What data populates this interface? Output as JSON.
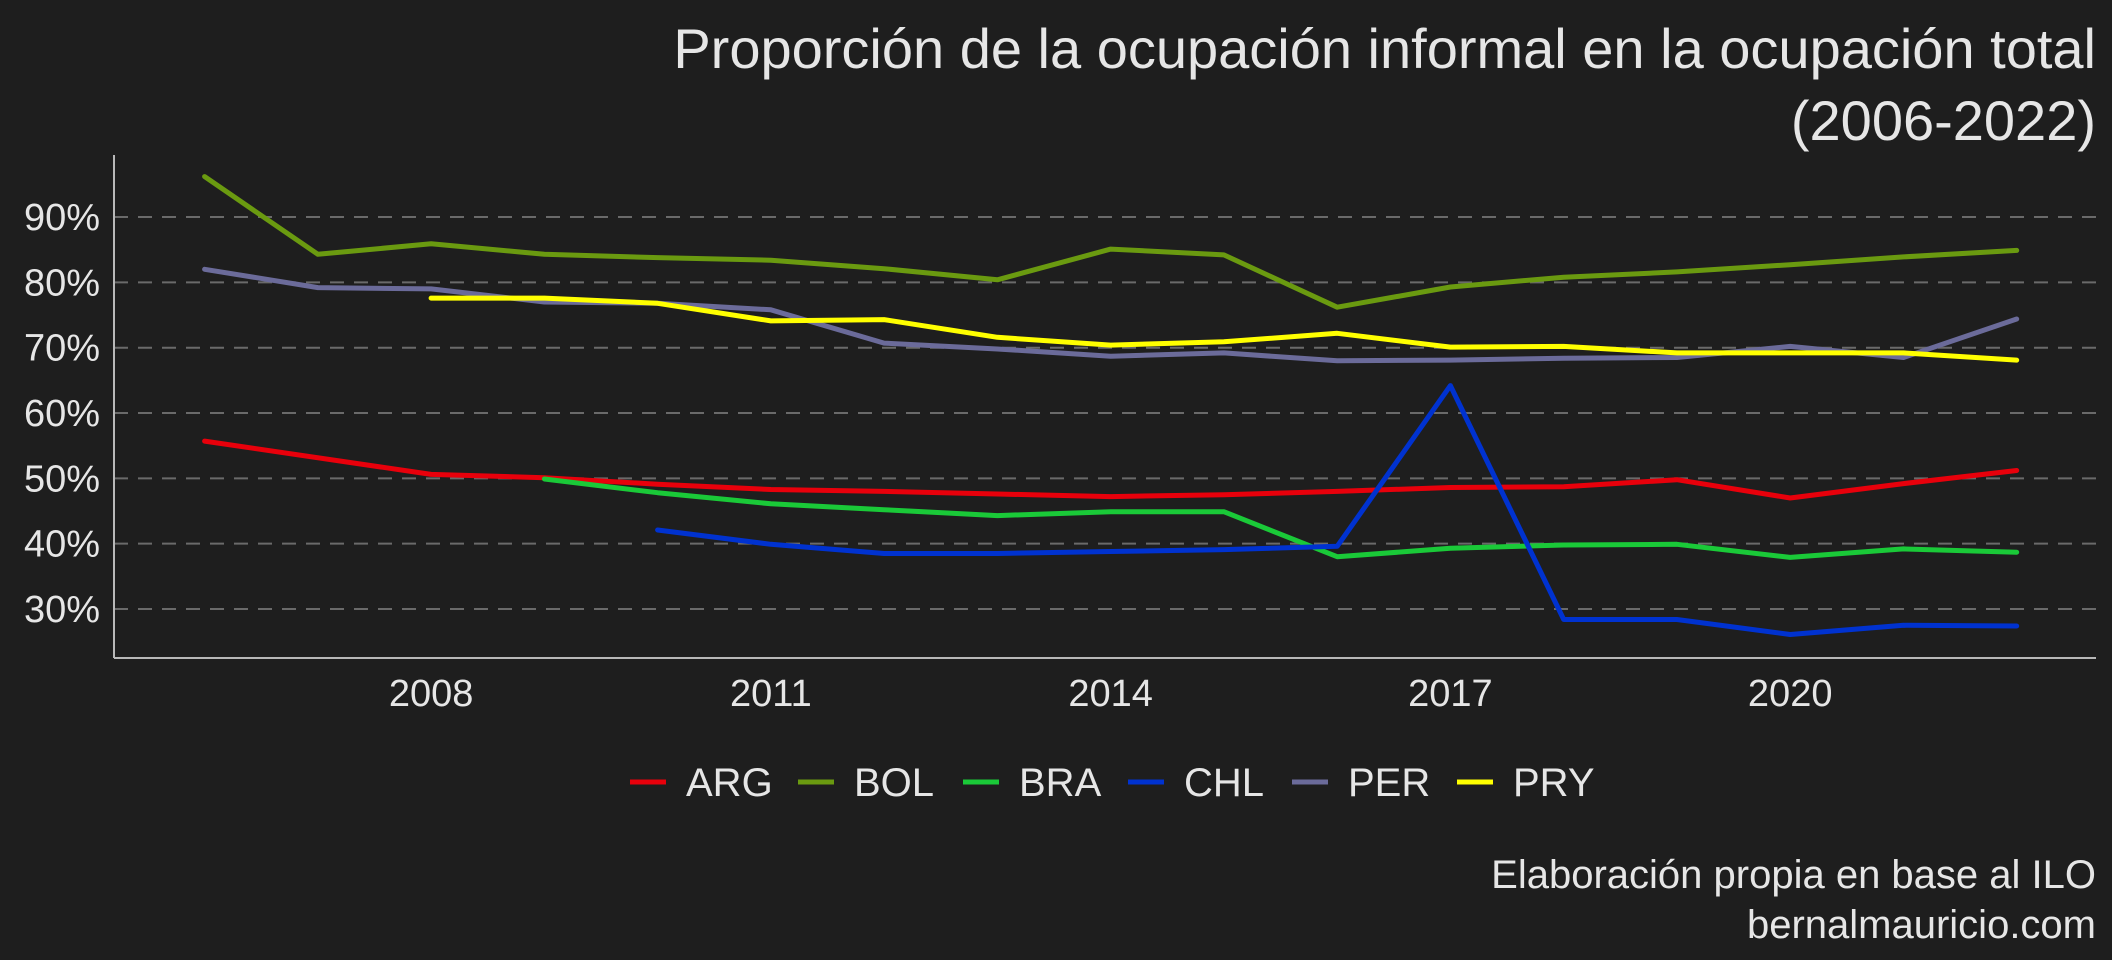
{
  "chart_data": {
    "type": "line",
    "title": "Proporción de la ocupación informal en la ocupación total",
    "subtitle": "(2006-2022)",
    "xlabel": "",
    "ylabel": "",
    "xlim": [
      2005.2,
      2022.7
    ],
    "ylim": [
      22.5,
      99.5
    ],
    "x_ticks": [
      2008,
      2011,
      2014,
      2017,
      2020
    ],
    "y_ticks": [
      30,
      40,
      50,
      60,
      70,
      80,
      90
    ],
    "y_tick_labels": [
      "30%",
      "40%",
      "50%",
      "60%",
      "70%",
      "80%",
      "90%"
    ],
    "grid": "horizontal dashed",
    "legend_position": "bottom",
    "series": [
      {
        "name": "ARG",
        "color": "#e8000b",
        "x": [
          2006,
          2008,
          2009,
          2010,
          2011,
          2012,
          2013,
          2014,
          2015,
          2016,
          2017,
          2018,
          2019,
          2020,
          2021,
          2022
        ],
        "y": [
          55.7,
          50.6,
          50.1,
          49.1,
          48.3,
          48.0,
          47.6,
          47.2,
          47.5,
          48.0,
          48.6,
          48.7,
          49.8,
          47.0,
          49.2,
          51.2
        ]
      },
      {
        "name": "BOL",
        "color": "#6a9a10",
        "x": [
          2006,
          2007,
          2008,
          2009,
          2010,
          2011,
          2012,
          2013,
          2014,
          2015,
          2016,
          2017,
          2018,
          2019,
          2020,
          2021,
          2022
        ],
        "y": [
          96.2,
          84.3,
          85.9,
          84.3,
          83.8,
          83.4,
          82.1,
          80.4,
          85.1,
          84.2,
          76.2,
          79.3,
          80.8,
          81.6,
          82.7,
          83.9,
          84.9
        ]
      },
      {
        "name": "BRA",
        "color": "#1ac938",
        "x": [
          2009,
          2010,
          2011,
          2012,
          2013,
          2014,
          2015,
          2016,
          2017,
          2018,
          2019,
          2020,
          2021,
          2022
        ],
        "y": [
          49.9,
          47.8,
          46.1,
          45.2,
          44.3,
          44.9,
          44.9,
          38.0,
          39.3,
          39.8,
          39.9,
          37.9,
          39.2,
          38.7
        ]
      },
      {
        "name": "CHL",
        "color": "#0032d0",
        "x": [
          2010,
          2011,
          2012,
          2013,
          2014,
          2015,
          2016,
          2017,
          2018,
          2019,
          2020,
          2021,
          2022
        ],
        "y": [
          42.1,
          39.9,
          38.5,
          38.5,
          38.8,
          39.1,
          39.6,
          64.2,
          28.4,
          28.4,
          26.1,
          27.5,
          27.4
        ]
      },
      {
        "name": "PER",
        "color": "#6b6b9a",
        "x": [
          2006,
          2007,
          2008,
          2009,
          2010,
          2011,
          2012,
          2013,
          2014,
          2015,
          2016,
          2017,
          2018,
          2019,
          2020,
          2021,
          2022
        ],
        "y": [
          82.0,
          79.2,
          79.0,
          77.0,
          76.8,
          75.8,
          70.7,
          69.8,
          68.7,
          69.2,
          68.0,
          68.1,
          68.4,
          68.5,
          70.2,
          68.5,
          74.4
        ]
      },
      {
        "name": "PRY",
        "color": "#ffff00",
        "x": [
          2008,
          2009,
          2010,
          2011,
          2012,
          2013,
          2014,
          2015,
          2016,
          2017,
          2018,
          2019,
          2020,
          2021,
          2022
        ],
        "y": [
          77.6,
          77.6,
          76.8,
          74.1,
          74.3,
          71.6,
          70.4,
          70.9,
          72.2,
          70.1,
          70.2,
          69.2,
          69.2,
          69.2,
          68.1
        ]
      }
    ],
    "caption": [
      "Elaboración propia en base al ILO",
      "bernalmauricio.com"
    ]
  }
}
